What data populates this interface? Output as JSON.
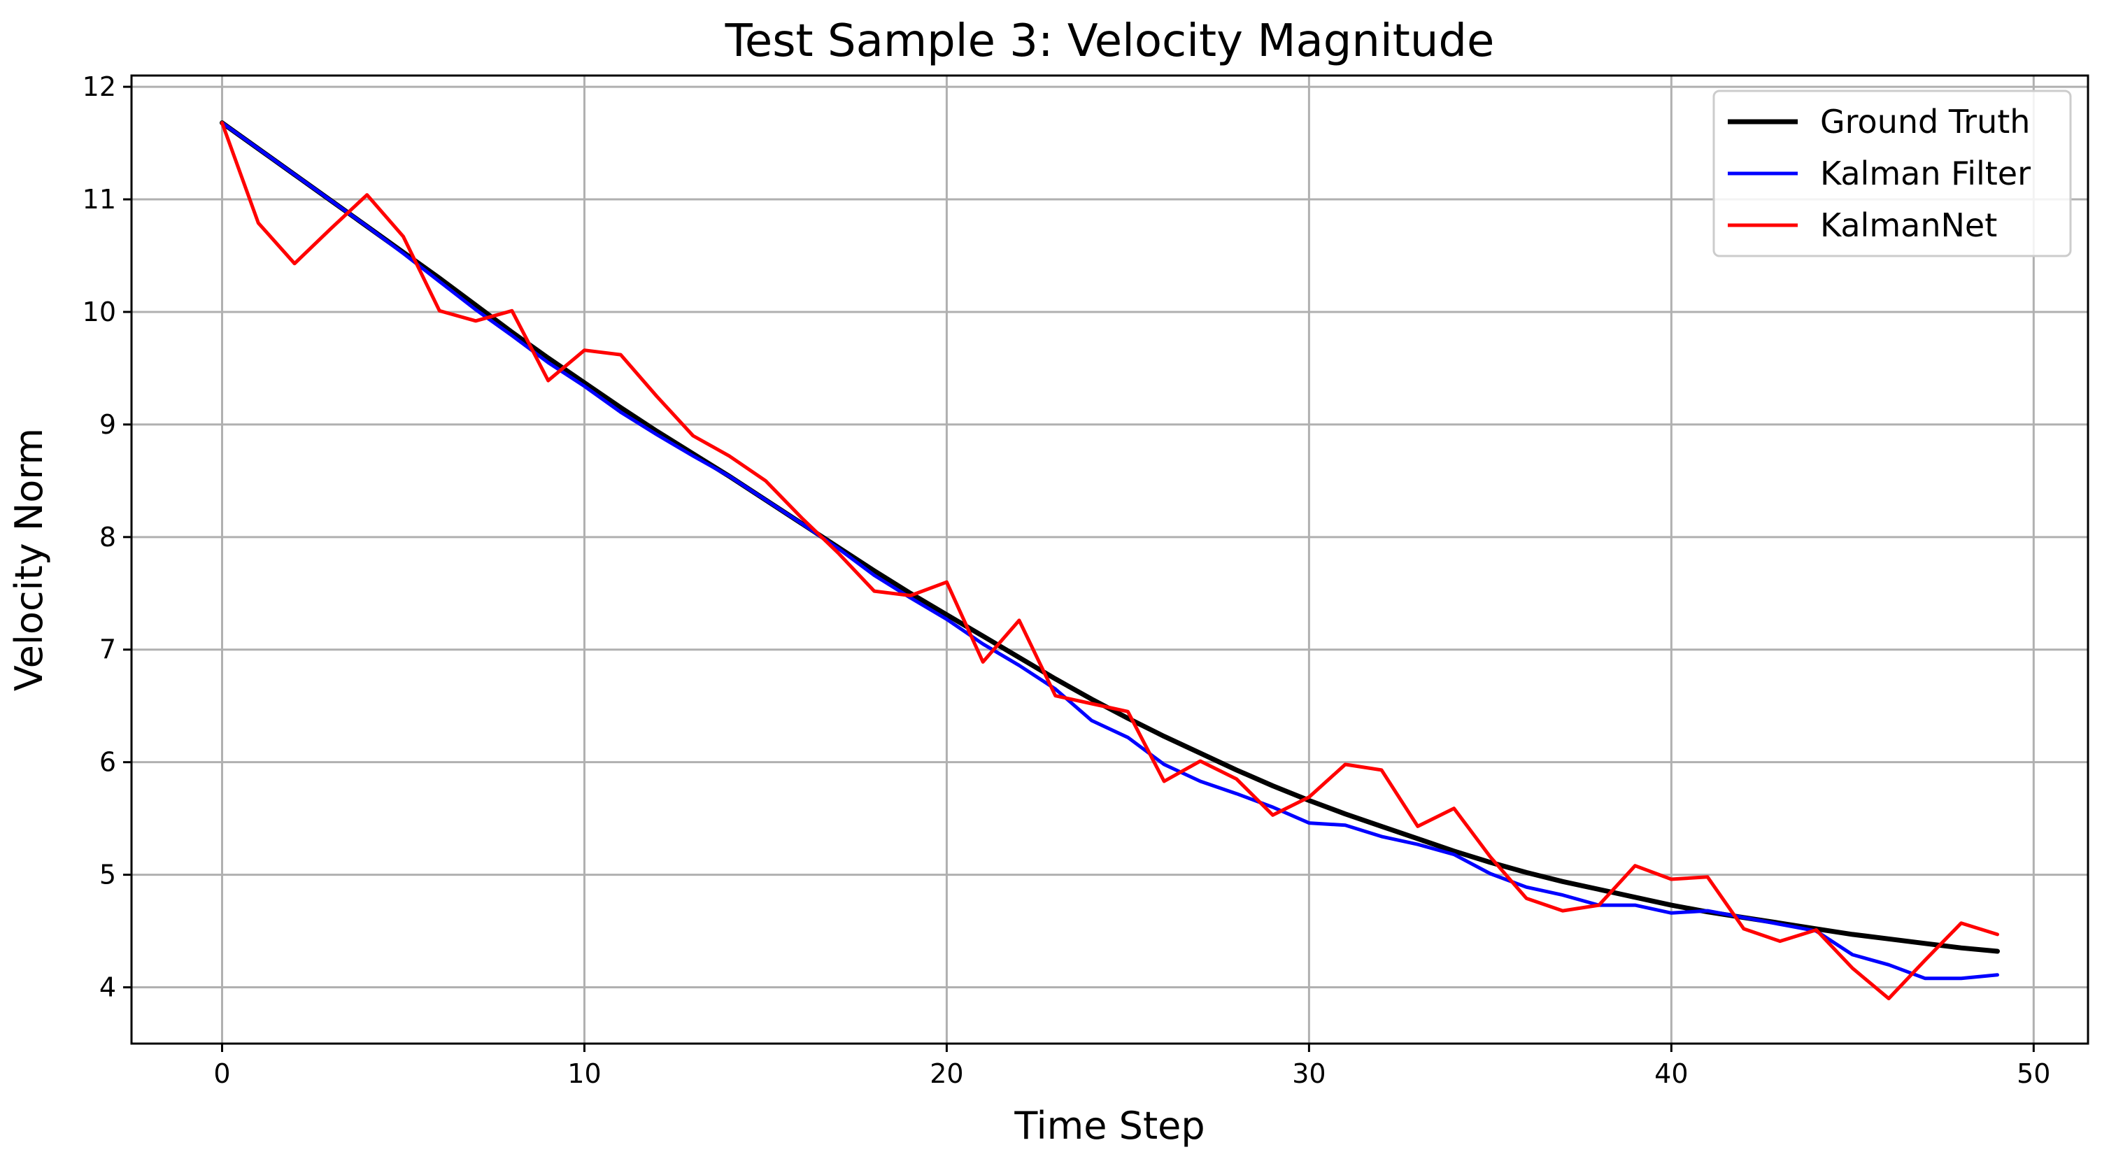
{
  "chart_data": {
    "type": "line",
    "title": "Test Sample 3: Velocity Magnitude",
    "xlabel": "Time Step",
    "ylabel": "Velocity Norm",
    "xlim": [
      -2.5,
      51.5
    ],
    "ylim": [
      3.5,
      12.1
    ],
    "xticks": [
      0,
      10,
      20,
      30,
      40,
      50
    ],
    "yticks": [
      4,
      5,
      6,
      7,
      8,
      9,
      10,
      11,
      12
    ],
    "grid": true,
    "legend_position": "upper right",
    "x": [
      0,
      1,
      2,
      3,
      4,
      5,
      6,
      7,
      8,
      9,
      10,
      11,
      12,
      13,
      14,
      15,
      16,
      17,
      18,
      19,
      20,
      21,
      22,
      23,
      24,
      25,
      26,
      27,
      28,
      29,
      30,
      31,
      32,
      33,
      34,
      35,
      36,
      37,
      38,
      39,
      40,
      41,
      42,
      43,
      44,
      45,
      46,
      47,
      48,
      49
    ],
    "series": [
      {
        "name": "Ground Truth",
        "color": "#000000",
        "values": [
          11.68,
          11.45,
          11.22,
          10.99,
          10.76,
          10.53,
          10.3,
          10.06,
          9.82,
          9.59,
          9.37,
          9.15,
          8.94,
          8.74,
          8.54,
          8.33,
          8.12,
          7.91,
          7.7,
          7.5,
          7.31,
          7.12,
          6.93,
          6.74,
          6.56,
          6.39,
          6.23,
          6.08,
          5.93,
          5.79,
          5.66,
          5.54,
          5.43,
          5.32,
          5.21,
          5.11,
          5.02,
          4.94,
          4.87,
          4.8,
          4.73,
          4.67,
          4.62,
          4.57,
          4.52,
          4.47,
          4.43,
          4.39,
          4.35,
          4.32
        ]
      },
      {
        "name": "Kalman Filter",
        "color": "#0000ff",
        "values": [
          11.68,
          11.45,
          11.22,
          10.99,
          10.76,
          10.52,
          10.27,
          10.02,
          9.79,
          9.55,
          9.34,
          9.11,
          8.91,
          8.72,
          8.54,
          8.33,
          8.12,
          7.9,
          7.66,
          7.46,
          7.27,
          7.05,
          6.86,
          6.65,
          6.37,
          6.22,
          5.98,
          5.83,
          5.72,
          5.6,
          5.46,
          5.44,
          5.34,
          5.27,
          5.18,
          5.01,
          4.89,
          4.82,
          4.73,
          4.73,
          4.66,
          4.68,
          4.62,
          4.56,
          4.5,
          4.29,
          4.2,
          4.08,
          4.08,
          4.11
        ]
      },
      {
        "name": "KalmanNet",
        "color": "#ff0000",
        "values": [
          11.68,
          10.79,
          10.43,
          10.74,
          11.04,
          10.67,
          10.01,
          9.92,
          10.01,
          9.39,
          9.66,
          9.62,
          9.25,
          8.9,
          8.72,
          8.5,
          8.17,
          7.86,
          7.52,
          7.48,
          7.6,
          6.89,
          7.26,
          6.59,
          6.52,
          6.45,
          5.83,
          6.01,
          5.85,
          5.53,
          5.69,
          5.98,
          5.93,
          5.43,
          5.59,
          5.16,
          4.79,
          4.68,
          4.73,
          5.08,
          4.96,
          4.98,
          4.52,
          4.41,
          4.51,
          4.17,
          3.9,
          4.24,
          4.57,
          4.47
        ]
      }
    ]
  }
}
